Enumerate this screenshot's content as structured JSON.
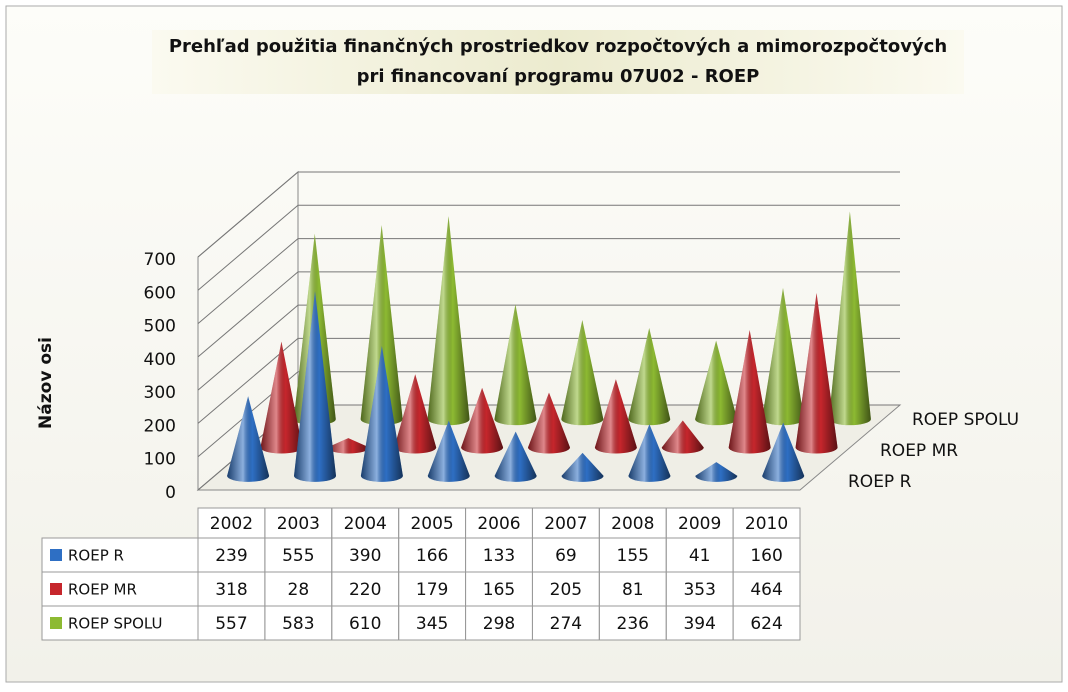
{
  "chart_data": {
    "type": "cone3d",
    "title": [
      "Prehľad použitia finančných prostriedkov rozpočtových a mimorozpočtových",
      "pri financovaní  programu 07U02 - ROEP"
    ],
    "y_label": "Názov osi",
    "categories": [
      "2002",
      "2003",
      "2004",
      "2005",
      "2006",
      "2007",
      "2008",
      "2009",
      "2010"
    ],
    "series": [
      {
        "name": "ROEP R",
        "color": "#2e6fc4",
        "values": [
          239,
          555,
          390,
          166,
          133,
          69,
          155,
          41,
          160
        ]
      },
      {
        "name": "ROEP MR",
        "color": "#c6262c",
        "values": [
          318,
          28,
          220,
          179,
          165,
          205,
          81,
          353,
          464
        ]
      },
      {
        "name": "ROEP SPOLU",
        "color": "#8dba32",
        "values": [
          557,
          583,
          610,
          345,
          298,
          274,
          236,
          394,
          624
        ]
      }
    ],
    "ylim": [
      0,
      700
    ],
    "yticks": [
      0,
      100,
      200,
      300,
      400,
      500,
      600,
      700
    ],
    "grid": true
  }
}
